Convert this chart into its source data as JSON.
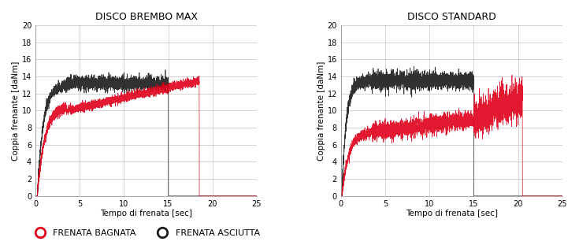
{
  "title_left": "DISCO BREMBO MAX",
  "title_right": "DISCO STANDARD",
  "xlabel": "Tempo di frenata [sec]",
  "ylabel": "Coppia frenante [daNm]",
  "xlim": [
    0,
    25
  ],
  "ylim": [
    0,
    20
  ],
  "xticks": [
    0,
    5,
    10,
    15,
    20,
    25
  ],
  "yticks": [
    0,
    2,
    4,
    6,
    8,
    10,
    12,
    14,
    16,
    18,
    20
  ],
  "color_wet": "#e0001a",
  "color_dry": "#1a1a1a",
  "legend_wet": "FRENATA BAGNATA",
  "legend_dry": "FRENATA ASCIUTTA",
  "background_color": "#ffffff",
  "grid_color": "#cccccc",
  "title_fontsize": 9,
  "label_fontsize": 7.5,
  "tick_fontsize": 7,
  "legend_fontsize": 8
}
